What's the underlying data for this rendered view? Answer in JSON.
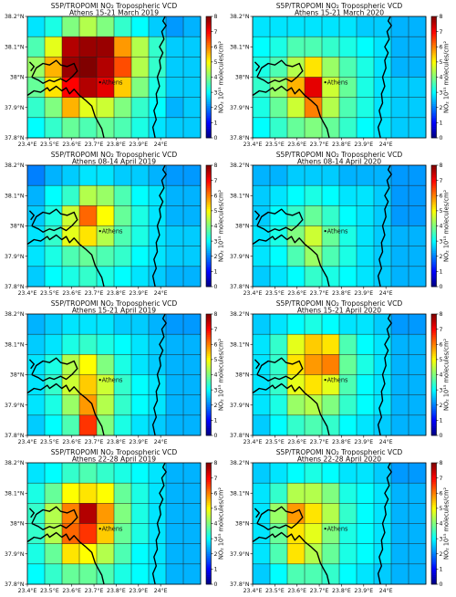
{
  "figure": {
    "colorbar_label": "NO₂ 10¹⁵ molecules/cm²",
    "colorbar_ticks": [
      "0",
      "1",
      "2",
      "3",
      "4",
      "5",
      "6",
      "7",
      "8"
    ],
    "colormap": "jet",
    "vmin": 0,
    "vmax": 8,
    "city_label": "Athens"
  },
  "chart_data": [
    {
      "type": "heatmap",
      "title": "S5P/TROPOMI NO₂ Tropospheric VCD",
      "subtitle": "Athens 15-21 March 2019",
      "x_ticks": [
        "23.4°E",
        "23.5°E",
        "23.6°E",
        "23.7°E",
        "23.8°E",
        "23.9°E",
        "24°E"
      ],
      "y_ticks": [
        "37.8°N",
        "37.9°N",
        "38°N",
        "38.1°N",
        "38.2°N"
      ],
      "grid_rows_north_to_south": [
        [
          2.8,
          3.2,
          4.0,
          4.4,
          4.0,
          3.4,
          3.0,
          2.6,
          2.2,
          2.4
        ],
        [
          3.6,
          4.8,
          7.6,
          7.8,
          7.8,
          5.8,
          4.4,
          3.4,
          2.6,
          2.6
        ],
        [
          4.2,
          5.6,
          7.8,
          8.0,
          7.6,
          6.4,
          4.4,
          3.4,
          2.6,
          2.6
        ],
        [
          3.8,
          5.2,
          7.0,
          7.6,
          7.2,
          5.4,
          4.0,
          3.2,
          2.6,
          2.6
        ],
        [
          3.4,
          4.0,
          5.6,
          4.8,
          4.6,
          4.0,
          3.4,
          3.0,
          2.4,
          2.6
        ],
        [
          3.0,
          3.4,
          3.8,
          3.6,
          3.8,
          3.6,
          3.2,
          2.8,
          2.6,
          2.6
        ]
      ]
    },
    {
      "type": "heatmap",
      "title": "S5P/TROPOMI NO₂ Tropospheric VCD",
      "subtitle": "Athens 15-21 March 2020",
      "x_ticks": [
        "23.4°E",
        "23.5°E",
        "23.6°E",
        "23.7°E",
        "23.8°E",
        "23.9°E",
        "24°E"
      ],
      "y_ticks": [
        "37.8°N",
        "37.9°N",
        "38°N",
        "38.1°N",
        "38.2°N"
      ],
      "grid_rows_north_to_south": [
        [
          2.8,
          2.8,
          2.8,
          2.8,
          2.8,
          2.8,
          2.6,
          2.6,
          2.4,
          2.4
        ],
        [
          3.0,
          3.2,
          3.6,
          3.6,
          3.4,
          3.2,
          3.0,
          2.8,
          2.4,
          2.4
        ],
        [
          3.2,
          3.6,
          4.4,
          5.2,
          4.2,
          3.6,
          3.2,
          2.8,
          2.4,
          2.4
        ],
        [
          3.4,
          4.2,
          5.6,
          7.2,
          4.6,
          3.8,
          3.2,
          2.8,
          2.6,
          2.6
        ],
        [
          3.2,
          3.8,
          4.6,
          6.0,
          4.4,
          3.6,
          3.2,
          2.8,
          2.6,
          2.6
        ],
        [
          3.0,
          3.4,
          3.8,
          4.0,
          3.8,
          3.4,
          3.0,
          2.8,
          2.6,
          2.6
        ]
      ]
    },
    {
      "type": "heatmap",
      "title": "S5P/TROPOMI NO₂ Tropospheric VCD",
      "subtitle": "Athens 08-14 April 2019",
      "x_ticks": [
        "23.4°E",
        "23.5°E",
        "23.6°E",
        "23.7°E",
        "23.8°E",
        "23.9°E",
        "24°E"
      ],
      "y_ticks": [
        "37.8°N",
        "37.9°N",
        "38°N",
        "38.1°N",
        "38.2°N"
      ],
      "grid_rows_north_to_south": [
        [
          2.0,
          2.4,
          2.6,
          2.8,
          2.8,
          2.6,
          2.6,
          2.4,
          2.2,
          2.2
        ],
        [
          2.4,
          3.0,
          3.4,
          4.4,
          4.2,
          3.6,
          3.0,
          2.8,
          2.4,
          2.4
        ],
        [
          2.6,
          3.2,
          4.6,
          6.2,
          5.0,
          3.8,
          3.2,
          2.8,
          2.4,
          2.4
        ],
        [
          2.8,
          3.4,
          4.8,
          5.2,
          4.4,
          3.6,
          3.2,
          2.8,
          2.6,
          2.6
        ],
        [
          2.8,
          3.2,
          3.6,
          3.8,
          3.6,
          3.4,
          3.0,
          2.8,
          2.6,
          2.6
        ],
        [
          2.6,
          3.0,
          3.2,
          3.4,
          3.2,
          3.0,
          2.8,
          2.6,
          2.4,
          2.4
        ]
      ]
    },
    {
      "type": "heatmap",
      "title": "S5P/TROPOMI NO₂ Tropospheric VCD",
      "subtitle": "Athens 08-14 April 2020",
      "x_ticks": [
        "23.4°E",
        "23.5°E",
        "23.6°E",
        "23.7°E",
        "23.8°E",
        "23.9°E",
        "24°E"
      ],
      "y_ticks": [
        "37.8°N",
        "37.9°N",
        "38°N",
        "38.1°N",
        "38.2°N"
      ],
      "grid_rows_north_to_south": [
        [
          2.4,
          2.4,
          2.6,
          2.6,
          2.6,
          2.4,
          2.4,
          2.4,
          2.2,
          2.2
        ],
        [
          2.6,
          2.8,
          3.0,
          3.2,
          3.0,
          2.8,
          2.8,
          2.6,
          2.2,
          2.2
        ],
        [
          2.6,
          3.0,
          3.4,
          3.8,
          3.4,
          3.0,
          2.8,
          2.6,
          2.2,
          2.2
        ],
        [
          2.8,
          3.2,
          4.0,
          4.6,
          3.8,
          3.2,
          2.8,
          2.6,
          2.4,
          2.4
        ],
        [
          2.8,
          3.0,
          3.6,
          4.2,
          3.6,
          3.2,
          2.8,
          2.6,
          2.4,
          2.4
        ],
        [
          2.6,
          2.8,
          3.0,
          3.4,
          3.2,
          3.0,
          2.8,
          2.6,
          2.4,
          2.4
        ]
      ]
    },
    {
      "type": "heatmap",
      "title": "S5P/TROPOMI NO₂ Tropospheric VCD",
      "subtitle": "Athens 15-21 April 2019",
      "x_ticks": [
        "23.4°E",
        "23.5°E",
        "23.6°E",
        "23.7°E",
        "23.8°E",
        "23.9°E",
        "24°E"
      ],
      "y_ticks": [
        "37.8°N",
        "37.9°N",
        "38°N",
        "38.1°N",
        "38.2°N"
      ],
      "grid_rows_north_to_south": [
        [
          2.4,
          2.6,
          2.8,
          2.8,
          2.8,
          2.6,
          2.6,
          2.4,
          2.2,
          2.2
        ],
        [
          2.6,
          2.8,
          3.2,
          3.4,
          3.2,
          3.0,
          2.8,
          2.6,
          2.4,
          2.4
        ],
        [
          2.8,
          3.2,
          4.4,
          5.0,
          4.0,
          3.2,
          2.8,
          2.6,
          2.4,
          2.4
        ],
        [
          2.8,
          3.4,
          4.6,
          5.4,
          4.6,
          3.4,
          3.0,
          2.8,
          2.4,
          2.4
        ],
        [
          2.8,
          3.2,
          4.2,
          5.8,
          4.4,
          3.4,
          3.0,
          2.8,
          2.4,
          2.4
        ],
        [
          2.6,
          3.0,
          3.6,
          6.6,
          4.0,
          3.2,
          2.8,
          2.6,
          2.4,
          2.4
        ]
      ]
    },
    {
      "type": "heatmap",
      "title": "S5P/TROPOMI NO₂ Tropospheric VCD",
      "subtitle": "Athens 15-21 April 2020",
      "x_ticks": [
        "23.4°E",
        "23.5°E",
        "23.6°E",
        "23.7°E",
        "23.8°E",
        "23.9°E",
        "24°E"
      ],
      "y_ticks": [
        "37.8°N",
        "37.9°N",
        "38°N",
        "38.1°N",
        "38.2°N"
      ],
      "grid_rows_north_to_south": [
        [
          2.6,
          2.8,
          3.0,
          3.2,
          3.0,
          2.8,
          2.8,
          2.6,
          2.2,
          2.2
        ],
        [
          2.8,
          3.4,
          4.8,
          5.4,
          5.2,
          3.6,
          3.0,
          2.8,
          2.4,
          2.4
        ],
        [
          2.8,
          3.4,
          5.2,
          5.8,
          6.0,
          3.8,
          3.2,
          2.8,
          2.4,
          2.4
        ],
        [
          2.8,
          3.4,
          4.8,
          5.2,
          4.8,
          3.6,
          3.0,
          2.8,
          2.4,
          2.4
        ],
        [
          2.8,
          3.2,
          4.2,
          4.4,
          4.0,
          3.4,
          3.0,
          2.8,
          2.4,
          2.4
        ],
        [
          2.6,
          3.0,
          3.4,
          3.6,
          3.4,
          3.0,
          2.8,
          2.6,
          2.4,
          2.4
        ]
      ]
    },
    {
      "type": "heatmap",
      "title": "S5P/TROPOMI NO₂ Tropospheric VCD",
      "subtitle": "Athens 22-28 April 2019",
      "x_ticks": [
        "23.4°E",
        "23.5°E",
        "23.6°E",
        "23.7°E",
        "23.8°E",
        "23.9°E",
        "24°E"
      ],
      "y_ticks": [
        "37.8°N",
        "37.9°N",
        "38°N",
        "38.1°N",
        "38.2°N"
      ],
      "grid_rows_north_to_south": [
        [
          2.8,
          3.0,
          3.4,
          3.6,
          3.4,
          3.2,
          3.0,
          2.8,
          2.4,
          2.4
        ],
        [
          3.2,
          3.8,
          5.0,
          5.2,
          5.0,
          3.8,
          3.2,
          2.8,
          2.4,
          2.4
        ],
        [
          3.4,
          4.4,
          6.0,
          7.6,
          5.8,
          4.0,
          3.2,
          2.8,
          2.4,
          2.4
        ],
        [
          3.4,
          4.4,
          6.2,
          6.6,
          5.4,
          3.8,
          3.2,
          2.8,
          2.4,
          2.4
        ],
        [
          3.2,
          3.8,
          5.2,
          5.0,
          4.4,
          3.6,
          3.0,
          2.8,
          2.4,
          2.4
        ],
        [
          3.0,
          3.4,
          3.8,
          3.8,
          3.6,
          3.2,
          3.0,
          2.8,
          2.4,
          2.4
        ]
      ]
    },
    {
      "type": "heatmap",
      "title": "S5P/TROPOMI NO₂ Tropospheric VCD",
      "subtitle": "Athens 22-28 April 2020",
      "x_ticks": [
        "23.4°E",
        "23.5°E",
        "23.6°E",
        "23.7°E",
        "23.8°E",
        "23.9°E",
        "24°E"
      ],
      "y_ticks": [
        "37.8°N",
        "37.9°N",
        "38°N",
        "38.1°N",
        "38.2°N"
      ],
      "grid_rows_north_to_south": [
        [
          2.6,
          2.8,
          3.0,
          3.2,
          3.0,
          2.8,
          2.8,
          2.6,
          2.2,
          2.2
        ],
        [
          2.8,
          3.4,
          4.4,
          4.4,
          4.0,
          3.2,
          3.0,
          2.8,
          2.4,
          2.4
        ],
        [
          2.8,
          4.2,
          5.8,
          5.2,
          4.4,
          3.4,
          3.0,
          2.8,
          2.4,
          2.4
        ],
        [
          2.8,
          3.8,
          5.2,
          4.8,
          4.0,
          3.2,
          3.0,
          2.8,
          2.4,
          2.4
        ],
        [
          2.8,
          3.6,
          5.2,
          4.4,
          3.8,
          3.2,
          3.0,
          2.8,
          2.4,
          2.4
        ],
        [
          2.6,
          3.0,
          3.6,
          3.6,
          3.4,
          3.0,
          2.8,
          2.6,
          2.4,
          2.4
        ]
      ]
    }
  ]
}
